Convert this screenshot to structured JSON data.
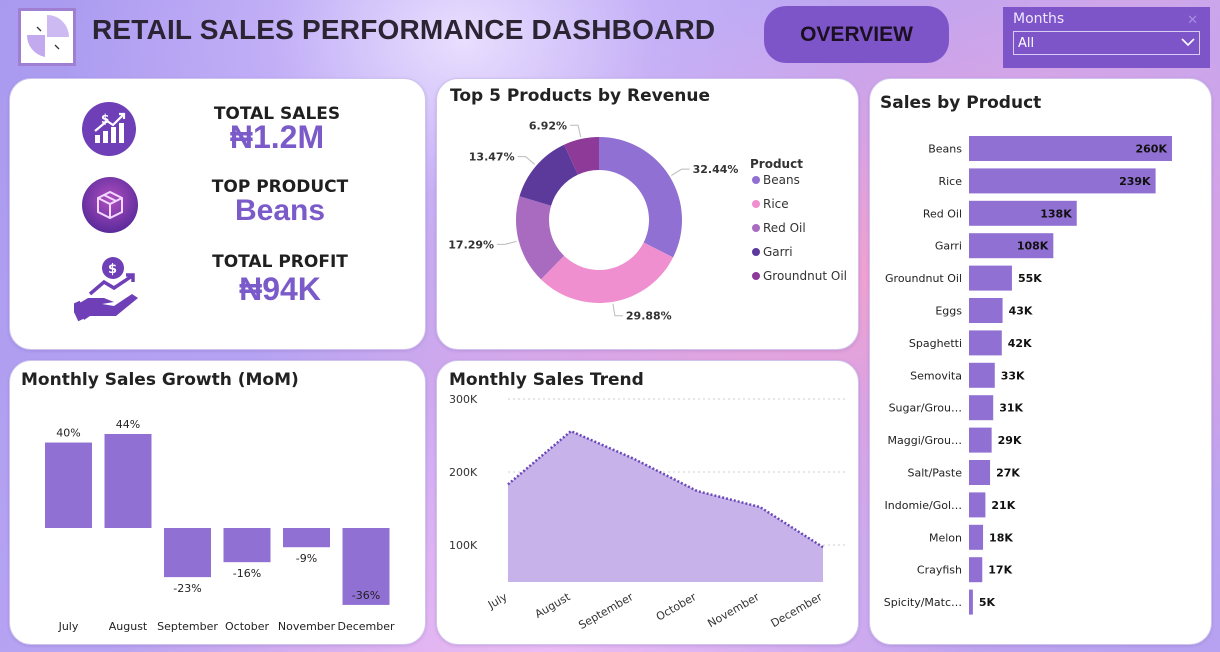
{
  "header": {
    "title": "RETAIL SALES PERFORMANCE DASHBOARD",
    "overview_label": "OVERVIEW",
    "slicer": {
      "label": "Months",
      "selected": "All"
    }
  },
  "kpis": {
    "total_sales": {
      "label": "TOTAL SALES",
      "value": "₦1.2M"
    },
    "top_product": {
      "label": "TOP PRODUCT",
      "value": "Beans"
    },
    "total_profit": {
      "label": "TOTAL PROFIT",
      "value": "₦94K"
    }
  },
  "colors": {
    "accent": "#7d55c9",
    "bar": "#9170d3",
    "area": "#c7b3ea",
    "line": "#6a48b8",
    "pie": [
      "#9170d3",
      "#ef8fcf",
      "#a86bc0",
      "#5b3a9c",
      "#8e3a98"
    ]
  },
  "chart_data": [
    {
      "type": "pie",
      "title": "Top 5 Products by Revenue",
      "legend_title": "Product",
      "legend": "right",
      "categories": [
        "Beans",
        "Rice",
        "Red Oil",
        "Garri",
        "Groundnut Oil"
      ],
      "values": [
        32.44,
        29.88,
        17.29,
        13.47,
        6.92
      ],
      "labels": [
        "32.44%",
        "29.88%",
        "17.29%",
        "13.47%",
        "6.92%"
      ]
    },
    {
      "type": "bar",
      "title": "Sales by Product",
      "orientation": "horizontal",
      "categories": [
        "Beans",
        "Rice",
        "Red Oil",
        "Garri",
        "Groundnut Oil",
        "Eggs",
        "Spaghetti",
        "Semovita",
        "Sugar/Grou…",
        "Maggi/Grou…",
        "Salt/Paste",
        "Indomie/Gol…",
        "Melon",
        "Crayfish",
        "Spicity/Matc…"
      ],
      "values": [
        260,
        239,
        138,
        108,
        55,
        43,
        42,
        33,
        31,
        29,
        27,
        21,
        18,
        17,
        5
      ],
      "labels": [
        "260K",
        "239K",
        "138K",
        "108K",
        "55K",
        "43K",
        "42K",
        "33K",
        "31K",
        "29K",
        "27K",
        "21K",
        "18K",
        "17K",
        "5K"
      ],
      "unit": "K"
    },
    {
      "type": "bar",
      "title": "Monthly Sales Growth (MoM)",
      "categories": [
        "July",
        "August",
        "September",
        "October",
        "November",
        "December"
      ],
      "values": [
        40,
        44,
        -23,
        -16,
        -9,
        -36
      ],
      "labels": [
        "40%",
        "44%",
        "-23%",
        "-16%",
        "-9%",
        "-36%"
      ]
    },
    {
      "type": "area",
      "title": "Monthly Sales Trend",
      "categories": [
        "July",
        "August",
        "September",
        "October",
        "November",
        "December"
      ],
      "values": [
        183,
        256,
        218,
        174,
        152,
        97
      ],
      "yticks": [
        "100K",
        "200K",
        "300K"
      ],
      "ytick_values": [
        100,
        200,
        300
      ],
      "ylim": [
        50,
        300
      ],
      "grid": true
    }
  ]
}
